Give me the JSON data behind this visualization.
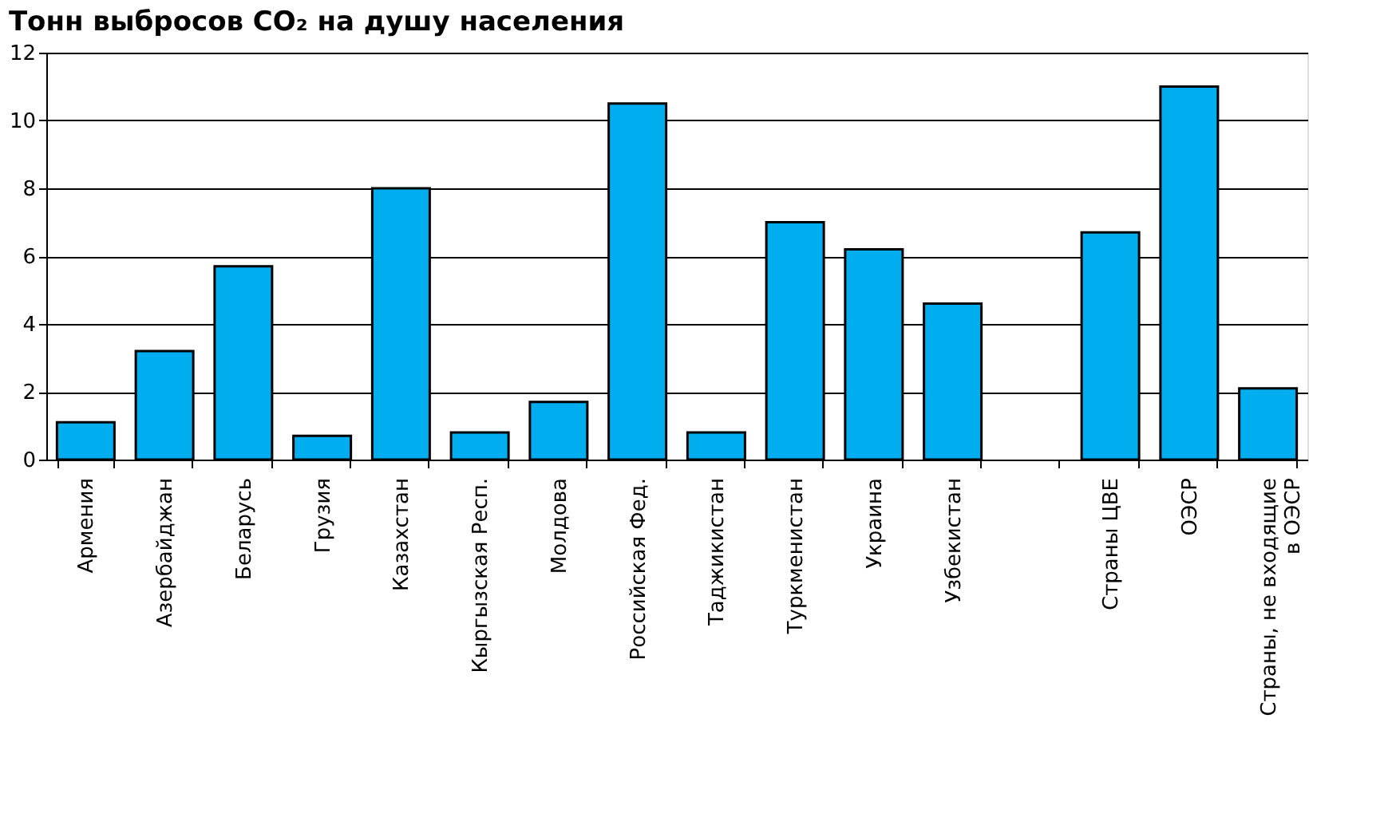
{
  "chart_data": {
    "type": "bar",
    "title": "Тонн выбросов CO₂ на душу населения",
    "categories": [
      "Армения",
      "Азербайджан",
      "Беларусь",
      "Грузия",
      "Казахстан",
      "Кыргызская Респ.",
      "Молдова",
      "Российская Фед.",
      "Таджикистан",
      "Туркменистан",
      "Украина",
      "Узбекистан",
      null,
      "Страны ЦВЕ",
      "ОЭСР",
      "Страны, не входящие в ОЭСР"
    ],
    "values": [
      1.1,
      3.2,
      5.7,
      0.7,
      8.0,
      0.8,
      1.7,
      10.5,
      0.8,
      7.0,
      6.2,
      4.6,
      null,
      6.7,
      11.0,
      2.1
    ],
    "color": "#00aeef",
    "ylim": [
      0,
      12
    ],
    "yticks": [
      0,
      2,
      4,
      6,
      8,
      10,
      12
    ],
    "grid": "y"
  }
}
